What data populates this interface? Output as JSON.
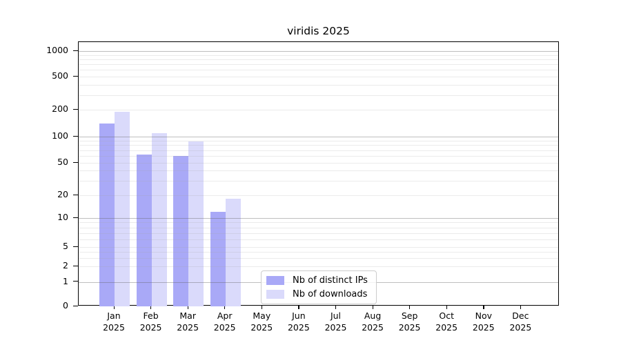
{
  "chart_data": {
    "type": "bar",
    "title": "viridis 2025",
    "y_scale": "symlog",
    "ylim": [
      0,
      1250
    ],
    "grid": "horizontal, major and minor log gridlines",
    "legend_position": "lower center-left inside plot",
    "y_ticks": [
      0,
      1,
      2,
      5,
      10,
      20,
      50,
      100,
      200,
      500,
      1000
    ],
    "categories": [
      "Jan",
      "Feb",
      "Mar",
      "Apr",
      "May",
      "Jun",
      "Jul",
      "Aug",
      "Sep",
      "Oct",
      "Nov",
      "Dec"
    ],
    "year_label": "2025",
    "series": [
      {
        "name": "Nb of distinct IPs",
        "color": "#a9a9f7",
        "values": [
          140,
          62,
          60,
          12,
          0,
          0,
          0,
          0,
          0,
          0,
          0,
          0
        ]
      },
      {
        "name": "Nb of downloads",
        "color": "#dadafb",
        "values": [
          190,
          110,
          88,
          18,
          0,
          0,
          0,
          0,
          0,
          0,
          0,
          0
        ]
      }
    ]
  }
}
